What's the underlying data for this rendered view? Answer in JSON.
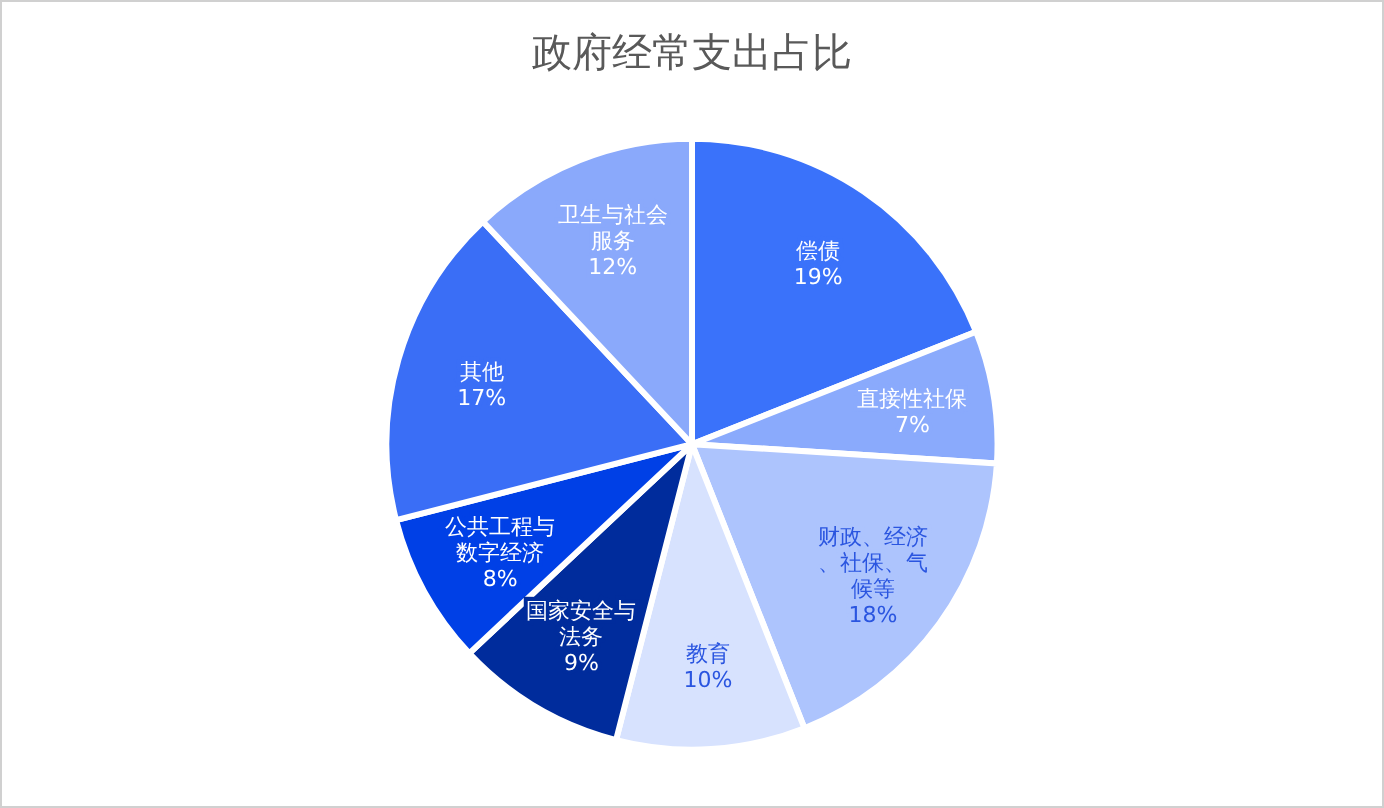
{
  "chart_data": {
    "type": "pie",
    "title": "政府经常支出占比",
    "categories": [
      "偿债",
      "直接性社保",
      "财政、经济、社保、气候等",
      "教育",
      "国家安全与法务",
      "公共工程与数字经济",
      "其他",
      "卫生与社会服务"
    ],
    "values": [
      19,
      7,
      18,
      10,
      9,
      8,
      17,
      12
    ],
    "colors": [
      "#3a72fa",
      "#8aaafc",
      "#adc4fd",
      "#d7e2fe",
      "#002c9c",
      "#0040e6",
      "#3a6ef6",
      "#8aa9fb"
    ],
    "value_labels": [
      "19%",
      "7%",
      "18%",
      "10%",
      "9%",
      "8%",
      "17%",
      "12%"
    ],
    "legend": false
  }
}
